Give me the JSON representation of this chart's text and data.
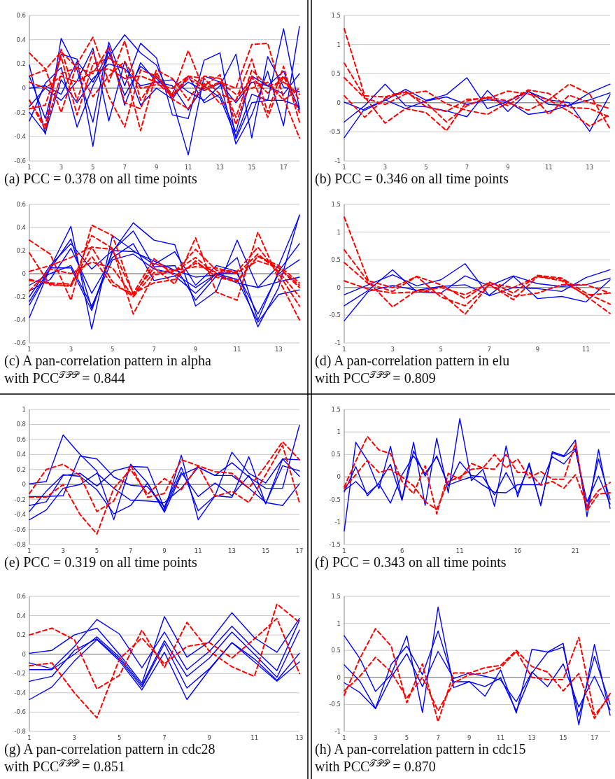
{
  "chart_data": [
    {
      "type": "line",
      "title": "(a) PCC = 0.378 on all time points",
      "x": [
        1,
        2,
        3,
        4,
        5,
        6,
        7,
        8,
        9,
        10,
        11,
        12,
        13,
        14,
        15,
        16,
        17,
        18
      ],
      "xlim": [
        1,
        18
      ],
      "xticks": [
        1,
        3,
        5,
        7,
        9,
        11,
        13,
        15,
        17
      ],
      "ylim": [
        -0.6,
        0.6
      ],
      "yticks": [
        -0.6,
        -0.4,
        -0.2,
        0,
        0.2,
        0.4,
        0.6
      ],
      "grid": "y",
      "series": [
        {
          "color": "#0000ff",
          "line_style": "solid",
          "values": [
            0.19,
            -0.38,
            0.41,
            0.15,
            -0.28,
            0.38,
            0.02,
            0.37,
            0.25,
            -0.22,
            -0.25,
            0.23,
            0.29,
            -0.42,
            -0.12,
            -0.1,
            0.49,
            -0.17
          ]
        },
        {
          "color": "#0000ff",
          "line_style": "solid",
          "values": [
            -0.27,
            0.04,
            0.17,
            -0.32,
            0.02,
            0.26,
            0.44,
            0.29,
            0.19,
            -0.1,
            -0.55,
            0.1,
            0.05,
            -0.46,
            -0.22,
            0.14,
            -0.31,
            0.51
          ]
        },
        {
          "color": "#0000ff",
          "line_style": "solid",
          "values": [
            0.1,
            -0.25,
            0.28,
            0.24,
            -0.48,
            0.35,
            -0.14,
            0.21,
            0.05,
            0.07,
            -0.03,
            -0.1,
            0.02,
            0.28,
            -0.41,
            0.26,
            0.01,
            -0.03
          ]
        },
        {
          "color": "#0000ff",
          "line_style": "solid",
          "values": [
            -0.15,
            0,
            -0.1,
            0.06,
            0.33,
            -0.27,
            0.22,
            -0.14,
            0,
            -0.09,
            0.1,
            -0.12,
            -0.05,
            -0.36,
            0.1,
            0.02,
            -0.05,
            0.12
          ]
        },
        {
          "color": "#0000ff",
          "line_style": "solid",
          "values": [
            -0.2,
            -0.37,
            0.07,
            -0.12,
            0.08,
            0.2,
            0.16,
            0.02,
            0.05,
            0.02,
            -0.18,
            0.02,
            -0.08,
            -0.4,
            -0.05,
            -0.1,
            -0.1,
            -0.15
          ]
        },
        {
          "color": "#0000ff",
          "line_style": "solid",
          "values": [
            0,
            0.02,
            -0.05,
            0.22,
            0.05,
            0.3,
            -0.06,
            0.18,
            0.08,
            -0.06,
            0.05,
            -0.02,
            0.04,
            -0.12,
            0.05,
            0.02,
            0.14,
            -0.18
          ]
        },
        {
          "color": "#ff0000",
          "line_style": "dashed",
          "values": [
            0.29,
            0.16,
            -0.2,
            0.2,
            0.42,
            0.05,
            0.39,
            -0.1,
            0.1,
            -0.05,
            0.31,
            -0.02,
            0.05,
            0,
            0.36,
            0.37,
            -0.08,
            -0.41
          ]
        },
        {
          "color": "#ff0000",
          "line_style": "dashed",
          "values": [
            -0.1,
            -0.31,
            0.32,
            -0.1,
            0.3,
            -0.07,
            -0.32,
            0.15,
            0.1,
            -0.06,
            0.1,
            0.08,
            -0.05,
            -0.1,
            0.24,
            -0.2,
            0.18,
            -0.28
          ]
        },
        {
          "color": "#ff0000",
          "line_style": "dashed",
          "values": [
            -0.17,
            -0.14,
            0.26,
            -0.22,
            0.2,
            0.25,
            0.16,
            -0.35,
            0.13,
            -0.09,
            -0.17,
            0.04,
            -0.13,
            -0.1,
            0.09,
            -0.04,
            0.1,
            -0.1
          ]
        },
        {
          "color": "#ff0000",
          "line_style": "dashed",
          "values": [
            0.1,
            0.15,
            0.3,
            0.17,
            0.12,
            0.34,
            -0.12,
            -0.17,
            0.15,
            0.08,
            -0.1,
            0.1,
            0.08,
            -0.24,
            0.15,
            0.02,
            0.05,
            -0.05
          ]
        },
        {
          "color": "#ff0000",
          "line_style": "dashed",
          "values": [
            -0.1,
            -0.34,
            0.12,
            0.17,
            -0.07,
            0.1,
            0.22,
            0,
            0.03,
            0,
            0.1,
            0.02,
            0.11,
            -0.3,
            0.1,
            -0.24,
            0.1,
            -0.2
          ]
        },
        {
          "color": "#ff0000",
          "line_style": "dashed",
          "values": [
            0.05,
            0,
            0.1,
            0.05,
            0.14,
            0.16,
            0.08,
            0.1,
            0.05,
            -0.07,
            0.08,
            0,
            0.05,
            -0.05,
            0,
            0.05,
            -0.1,
            0
          ]
        }
      ]
    },
    {
      "type": "line",
      "title": "(b) PCC = 0.346 on all time points",
      "x": [
        1,
        2,
        3,
        4,
        5,
        6,
        7,
        8,
        9,
        10,
        11,
        12,
        13,
        14
      ],
      "xlim": [
        1,
        14
      ],
      "xticks": [
        1,
        3,
        5,
        7,
        9,
        11,
        13
      ],
      "ylim": [
        -1,
        1.5
      ],
      "yticks": [
        -1,
        -0.5,
        0,
        0.5,
        1,
        1.5
      ],
      "grid": "y",
      "series": [
        {
          "color": "#0000ff",
          "line_style": "solid",
          "values": [
            -0.6,
            -0.1,
            0.04,
            0.23,
            0.04,
            0.14,
            0.43,
            -0.1,
            0.02,
            0.2,
            -0.03,
            -0.05,
            0.17,
            0.32
          ]
        },
        {
          "color": "#0000ff",
          "line_style": "solid",
          "values": [
            -0.33,
            -0.05,
            0.32,
            -0.05,
            -0.07,
            -0.14,
            -0.24,
            0.21,
            -0.15,
            0.19,
            0.05,
            0,
            -0.49,
            0.14
          ]
        },
        {
          "color": "#0000ff",
          "line_style": "solid",
          "values": [
            0.01,
            -0.13,
            0.05,
            -0.1,
            0.03,
            0.1,
            -0.03,
            0.05,
            0.02,
            -0.2,
            -0.15,
            -0.04,
            0.05,
            0.17
          ]
        },
        {
          "color": "#ff0000",
          "line_style": "dashed",
          "values": [
            1.27,
            0.12,
            0.1,
            0.2,
            -0.07,
            -0.15,
            0.06,
            0.07,
            0.2,
            0.15,
            0.05,
            0.32,
            0.15,
            -0.45
          ]
        },
        {
          "color": "#ff0000",
          "line_style": "dashed",
          "values": [
            0.68,
            0.1,
            -0.35,
            -0.1,
            -0.17,
            -0.48,
            0.03,
            0.1,
            0.03,
            0.22,
            0.16,
            -0.08,
            -0.1,
            -0.25
          ]
        },
        {
          "color": "#ff0000",
          "line_style": "dashed",
          "values": [
            0.43,
            0.08,
            -0.03,
            0.15,
            0.2,
            -0.02,
            -0.13,
            -0.2,
            0,
            -0.13,
            0.05,
            -0.15,
            -0.4,
            -0.2
          ]
        },
        {
          "color": "#ff0000",
          "line_style": "dashed",
          "values": [
            0.12,
            -0.25,
            0.08,
            0.18,
            0,
            -0.33,
            -0.05,
            0.09,
            -0.05,
            0.21,
            -0.2,
            0.13,
            0,
            -0.1
          ]
        }
      ]
    },
    {
      "type": "line",
      "title": "(c) A pan-correlation pattern in alpha with PCC$^{𝒯𝒫𝒫}$ = 0.844",
      "x": [
        1,
        2,
        3,
        4,
        5,
        6,
        7,
        8,
        9,
        10,
        11,
        12,
        13,
        14
      ],
      "xlim": [
        1,
        14
      ],
      "xticks": [
        1,
        3,
        5,
        7,
        9,
        11,
        13
      ],
      "ylim": [
        -0.6,
        0.6
      ],
      "yticks": [
        -0.6,
        -0.4,
        -0.2,
        0,
        0.2,
        0.4,
        0.6
      ],
      "grid": "y",
      "series": [
        {
          "color": "#0000ff",
          "line_style": "solid",
          "values": [
            -0.38,
            0.05,
            0.41,
            -0.48,
            0.33,
            0.2,
            0.08,
            0.19,
            -0.1,
            0.07,
            0.02,
            -0.46,
            -0.12,
            0.51
          ]
        },
        {
          "color": "#0000ff",
          "line_style": "solid",
          "values": [
            -0.27,
            0.04,
            0.3,
            -0.3,
            0.19,
            0.44,
            0.29,
            0.25,
            -0.28,
            -0.15,
            0.29,
            -0.12,
            0.07,
            0.5
          ]
        },
        {
          "color": "#0000ff",
          "line_style": "solid",
          "values": [
            -0.2,
            0.07,
            0.26,
            0.04,
            0.2,
            0.37,
            0.06,
            0.07,
            -0.23,
            -0.02,
            0.14,
            -0.4,
            0.02,
            0.26
          ]
        },
        {
          "color": "#0000ff",
          "line_style": "solid",
          "values": [
            -0.15,
            -0.05,
            0.22,
            -0.17,
            0.14,
            0.26,
            -0.06,
            -0.02,
            -0.17,
            0,
            0,
            -0.35,
            0,
            0.12
          ]
        },
        {
          "color": "#0000ff",
          "line_style": "solid",
          "values": [
            -0.1,
            0,
            0.07,
            -0.28,
            0.12,
            0.17,
            0.04,
            0,
            -0.12,
            0,
            -0.05,
            -0.42,
            -0.18,
            -0.14
          ]
        },
        {
          "color": "#0000ff",
          "line_style": "solid",
          "values": [
            -0.24,
            0.05,
            0.05,
            -0.32,
            0.2,
            0.19,
            0.11,
            0.03,
            -0.03,
            -0.01,
            -0.08,
            -0.12,
            -0.07,
            -0.03
          ]
        },
        {
          "color": "#ff0000",
          "line_style": "dashed",
          "values": [
            0.29,
            0.17,
            -0.23,
            0.42,
            0.33,
            -0.18,
            0.05,
            -0.09,
            0.31,
            -0.16,
            -0.23,
            0.36,
            -0.05,
            -0.4
          ]
        },
        {
          "color": "#ff0000",
          "line_style": "dashed",
          "values": [
            0.18,
            -0.1,
            -0.1,
            0.33,
            0.22,
            -0.35,
            -0.01,
            0.02,
            0.21,
            0.03,
            0.02,
            0.23,
            0,
            -0.28
          ]
        },
        {
          "color": "#ff0000",
          "line_style": "dashed",
          "values": [
            0.02,
            0.07,
            0.14,
            0.23,
            -0.07,
            -0.2,
            0.09,
            0.02,
            0.14,
            -0.01,
            -0.06,
            0.15,
            0.05,
            -0.1
          ]
        },
        {
          "color": "#ff0000",
          "line_style": "dashed",
          "values": [
            -0.05,
            -0.09,
            -0.11,
            0.23,
            0.21,
            -0.17,
            0.13,
            -0.02,
            0.09,
            0.01,
            0.01,
            0.11,
            0.05,
            -0.12
          ]
        },
        {
          "color": "#ff0000",
          "line_style": "dashed",
          "values": [
            -0.15,
            0.04,
            0,
            0.1,
            0.05,
            -0.2,
            0.01,
            0.03,
            0.06,
            0.05,
            0,
            0.17,
            0.02,
            -0.2
          ]
        },
        {
          "color": "#ff0000",
          "line_style": "dashed",
          "values": [
            -0.06,
            -0.08,
            -0.09,
            0.15,
            -0.1,
            -0.17,
            -0.08,
            -0.05,
            0.11,
            -0.03,
            -0.07,
            0.15,
            0.07,
            -0.08
          ]
        }
      ]
    },
    {
      "type": "line",
      "title": "(d) A pan-correlation pattern in elu with PCC$^{𝒯𝒫𝒫}$ = 0.809",
      "x": [
        1,
        2,
        3,
        4,
        5,
        6,
        7,
        8,
        9,
        10,
        11,
        12
      ],
      "xlim": [
        1,
        12
      ],
      "xticks": [
        1,
        3,
        5,
        7,
        9,
        11
      ],
      "ylim": [
        -1,
        1.5
      ],
      "yticks": [
        -1,
        -0.5,
        0,
        0.5,
        1,
        1.5
      ],
      "grid": "y",
      "series": [
        {
          "color": "#0000ff",
          "line_style": "solid",
          "values": [
            -0.6,
            -0.07,
            0.04,
            -0.05,
            0.02,
            0.05,
            -0.14,
            0.2,
            -0.2,
            -0.16,
            -0.26,
            0.14
          ]
        },
        {
          "color": "#0000ff",
          "line_style": "solid",
          "values": [
            -0.33,
            -0.05,
            0.32,
            -0.08,
            -0.1,
            0.21,
            0.03,
            0.21,
            0.07,
            0.02,
            0.05,
            0.17
          ]
        },
        {
          "color": "#0000ff",
          "line_style": "solid",
          "values": [
            -0.13,
            0.05,
            0.23,
            0.03,
            0.14,
            0.43,
            -0.15,
            0,
            -0.02,
            -0.07,
            0.18,
            0.32
          ]
        },
        {
          "color": "#ff0000",
          "line_style": "dashed",
          "values": [
            1.27,
            0.12,
            0,
            0.2,
            0.05,
            -0.2,
            0.1,
            -0.1,
            0.22,
            0.17,
            -0.1,
            -0.3
          ]
        },
        {
          "color": "#ff0000",
          "line_style": "dashed",
          "values": [
            0.68,
            0.1,
            -0.35,
            -0.05,
            -0.1,
            -0.48,
            0.05,
            -0.22,
            0.2,
            0.15,
            -0.15,
            -0.47
          ]
        },
        {
          "color": "#ff0000",
          "line_style": "dashed",
          "values": [
            0.45,
            0.07,
            -0.07,
            0.2,
            -0.17,
            -0.33,
            0.05,
            -0.16,
            -0.1,
            0.05,
            0.05,
            -0.1
          ]
        },
        {
          "color": "#ff0000",
          "line_style": "dashed",
          "values": [
            0.12,
            -0.03,
            -0.1,
            -0.08,
            0,
            -0.13,
            0.08,
            0,
            0.2,
            0.12,
            -0.14,
            -0.1
          ]
        }
      ]
    },
    {
      "type": "line",
      "title": "(e) PCC = 0.319 on all time points",
      "x": [
        1,
        2,
        3,
        4,
        5,
        6,
        7,
        8,
        9,
        10,
        11,
        12,
        13,
        14,
        15,
        16,
        17
      ],
      "xlim": [
        1,
        17
      ],
      "xticks": [
        1,
        3,
        5,
        7,
        9,
        11,
        13,
        15,
        17
      ],
      "ylim": [
        -0.8,
        1
      ],
      "yticks": [
        -0.8,
        -0.6,
        -0.4,
        -0.2,
        0,
        0.2,
        0.4,
        0.6,
        0.8,
        1
      ],
      "grid": "y",
      "series": [
        {
          "color": "#0000ff",
          "line_style": "solid",
          "values": [
            0.01,
            0.04,
            0.66,
            0.4,
            0.18,
            -0.47,
            0.27,
            0.02,
            -0.35,
            0.39,
            -0.47,
            -0.15,
            -0.17,
            0.37,
            -0.26,
            0.34,
            0.33
          ]
        },
        {
          "color": "#0000ff",
          "line_style": "solid",
          "values": [
            -0.16,
            -0.16,
            -0.15,
            0.38,
            0.34,
            0.1,
            -0.01,
            -0.03,
            -0.3,
            0.23,
            -0.35,
            -0.15,
            0.43,
            0.15,
            0.02,
            0.34,
            0.11
          ]
        },
        {
          "color": "#0000ff",
          "line_style": "solid",
          "values": [
            -0.36,
            -0.09,
            0.13,
            0.11,
            -0.07,
            -0.39,
            -0.28,
            0.02,
            -0.37,
            0.13,
            0.23,
            0.12,
            0.29,
            0.1,
            -0.05,
            -0.05,
            0.79
          ]
        },
        {
          "color": "#0000ff",
          "line_style": "solid",
          "values": [
            -0.28,
            -0.23,
            0.12,
            0.15,
            -0.02,
            0.18,
            0.24,
            0.23,
            -0.32,
            0.16,
            -0.16,
            0.02,
            -0.15,
            0.12,
            -0.25,
            0.25,
            0.18
          ]
        },
        {
          "color": "#0000ff",
          "line_style": "solid",
          "values": [
            -0.47,
            -0.34,
            -0.05,
            0,
            0.15,
            -0.05,
            -0.21,
            -0.22,
            -0.24,
            -0.05,
            0.23,
            0.12,
            0.12,
            -0.05,
            -0.24,
            -0.28,
            0.01
          ]
        },
        {
          "color": "#ff0000",
          "line_style": "dashed",
          "values": [
            -0.12,
            0.2,
            0.27,
            0.12,
            -0.36,
            -0.22,
            0.26,
            -0.17,
            -0.12,
            0.33,
            0.25,
            0.17,
            0.15,
            -0.05,
            0.25,
            0.57,
            0.33
          ]
        },
        {
          "color": "#ff0000",
          "line_style": "dashed",
          "values": [
            -0.17,
            -0.17,
            0,
            -0.4,
            -0.66,
            -0.05,
            0.2,
            -0.13,
            0.08,
            -0.07,
            0.25,
            -0.16,
            -0.09,
            -0.24,
            0.13,
            0.52,
            -0.24
          ]
        }
      ]
    },
    {
      "type": "line",
      "title": "(f) PCC = 0.343 on all time points",
      "x": [
        1,
        2,
        3,
        4,
        5,
        6,
        7,
        8,
        9,
        10,
        11,
        12,
        13,
        14,
        15,
        16,
        17,
        18,
        19,
        20,
        21,
        22,
        23,
        24
      ],
      "xlim": [
        1,
        24
      ],
      "xticks": [
        1,
        6,
        11,
        16,
        21
      ],
      "ylim": [
        -1.5,
        1.5
      ],
      "yticks": [
        -1.5,
        -1,
        -0.5,
        0,
        0.5,
        1,
        1.5
      ],
      "grid": "y",
      "series": [
        {
          "color": "#0000ff",
          "line_style": "solid",
          "values": [
            -1.2,
            0.77,
            0.37,
            -0.26,
            0.68,
            -0.5,
            0.77,
            -0.63,
            0.86,
            -0.35,
            1.3,
            -0.08,
            0.17,
            -0.65,
            0.69,
            -0.44,
            0.31,
            -0.64,
            0.56,
            0.47,
            0.82,
            -0.88,
            0.61,
            -0.7
          ]
        },
        {
          "color": "#0000ff",
          "line_style": "solid",
          "values": [
            -0.33,
            0.23,
            -0.42,
            -0.13,
            0.28,
            -0.52,
            0.58,
            0.02,
            0.47,
            -0.2,
            0.34,
            0.03,
            0,
            -0.4,
            0.1,
            -0.36,
            0.26,
            -0.62,
            0.53,
            0.45,
            0.63,
            -0.7,
            0.4,
            -0.5
          ]
        },
        {
          "color": "#0000ff",
          "line_style": "solid",
          "values": [
            -0.3,
            -0.1,
            -0.37,
            -0.15,
            -0.58,
            0.05,
            0.47,
            0.07,
            0.45,
            -0.18,
            -0.08,
            0,
            -0.18,
            -0.34,
            -0.35,
            -0.17,
            -0.17,
            -0.17,
            0.45,
            0.29,
            0.6,
            -0.55,
            0.02,
            -0.6
          ]
        },
        {
          "color": "#ff0000",
          "line_style": "dashed",
          "values": [
            -0.22,
            0.35,
            0.9,
            0.6,
            0.52,
            -0.1,
            -0.37,
            0.25,
            -0.82,
            0.08,
            -0.05,
            0.3,
            0.2,
            0.5,
            0.2,
            0.4,
            -0.02,
            0.12,
            -0.05,
            -0.05,
            0.75,
            -0.75,
            -0.38,
            -0.35
          ]
        },
        {
          "color": "#ff0000",
          "line_style": "dashed",
          "values": [
            -0.25,
            0.05,
            0.37,
            0.1,
            0.17,
            0,
            -0.2,
            -0.55,
            -0.72,
            -0.1,
            0,
            0.17,
            0.2,
            0.17,
            0.5,
            0.1,
            0.1,
            -0.18,
            -0.1,
            -0.25,
            0.05,
            -0.65,
            -0.3,
            -0.12
          ]
        }
      ]
    },
    {
      "type": "line",
      "title": "(g) A pan-correlation pattern in cdc28 with PCC$^{𝒯𝒫𝒫}$ = 0.851",
      "x": [
        1,
        2,
        3,
        4,
        5,
        6,
        7,
        8,
        9,
        10,
        11,
        12,
        13
      ],
      "xlim": [
        1,
        13
      ],
      "xticks": [
        1,
        3,
        5,
        7,
        9,
        11,
        13
      ],
      "ylim": [
        -0.8,
        0.6
      ],
      "yticks": [
        -0.8,
        -0.6,
        -0.4,
        -0.2,
        0,
        0.2,
        0.4,
        0.6
      ],
      "grid": "y",
      "series": [
        {
          "color": "#0000ff",
          "line_style": "solid",
          "values": [
            0.01,
            0.04,
            0.2,
            0.27,
            0,
            -0.3,
            0.39,
            -0.03,
            0.13,
            0.43,
            0.17,
            0.02,
            0.37
          ]
        },
        {
          "color": "#0000ff",
          "line_style": "solid",
          "values": [
            -0.09,
            -0.15,
            0.08,
            0.36,
            0.21,
            -0.14,
            0.23,
            -0.16,
            0.03,
            0.29,
            0.05,
            -0.17,
            0.35
          ]
        },
        {
          "color": "#0000ff",
          "line_style": "solid",
          "values": [
            -0.16,
            -0.16,
            0,
            0.18,
            -0.03,
            -0.32,
            0.14,
            -0.23,
            -0.04,
            0.23,
            0,
            -0.24,
            0.25
          ]
        },
        {
          "color": "#0000ff",
          "line_style": "solid",
          "values": [
            -0.28,
            -0.23,
            0.04,
            0.16,
            -0.05,
            -0.34,
            0.11,
            -0.35,
            -0.15,
            0.12,
            -0.05,
            -0.27,
            0.01
          ]
        },
        {
          "color": "#0000ff",
          "line_style": "solid",
          "values": [
            -0.47,
            -0.34,
            -0.07,
            0.15,
            -0.07,
            -0.37,
            0.02,
            -0.47,
            -0.16,
            0.12,
            -0.08,
            -0.28,
            -0.08
          ]
        },
        {
          "color": "#ff0000",
          "line_style": "dashed",
          "values": [
            0.2,
            0.27,
            0.15,
            -0.36,
            -0.22,
            0.25,
            -0.14,
            0.33,
            0.03,
            -0.13,
            -0.23,
            0.52,
            0.33
          ]
        },
        {
          "color": "#ff0000",
          "line_style": "dashed",
          "values": [
            -0.12,
            -0.09,
            -0.4,
            -0.66,
            -0.05,
            0.17,
            -0.1,
            0.08,
            0.12,
            -0.04,
            0.16,
            0.37,
            -0.2
          ]
        }
      ]
    },
    {
      "type": "line",
      "title": "(h) A pan-correlation pattern in cdc15 with PCC$^{𝒯𝒫𝒫}$ = 0.870",
      "x": [
        1,
        2,
        3,
        4,
        5,
        6,
        7,
        8,
        9,
        10,
        11,
        12,
        13,
        14,
        15,
        16,
        17,
        18
      ],
      "xlim": [
        1,
        18
      ],
      "xticks": [
        1,
        3,
        5,
        7,
        9,
        11,
        13,
        15,
        17
      ],
      "ylim": [
        -1,
        1.5
      ],
      "yticks": [
        -1,
        -0.5,
        0,
        0.5,
        1,
        1.5
      ],
      "grid": "y",
      "series": [
        {
          "color": "#0000ff",
          "line_style": "solid",
          "values": [
            0.77,
            0.35,
            -0.26,
            0.05,
            0.77,
            -0.65,
            1.3,
            -0.19,
            -0.08,
            -0.35,
            0.14,
            -0.66,
            0.52,
            0.47,
            0.63,
            -0.88,
            0.61,
            -0.7
          ]
        },
        {
          "color": "#0000ff",
          "line_style": "solid",
          "values": [
            0.23,
            -0.07,
            -0.57,
            0.24,
            0.58,
            0.05,
            0.86,
            -0.08,
            -0.08,
            -0.17,
            -0.01,
            -0.62,
            0.08,
            0.46,
            0.56,
            -0.72,
            0.39,
            -0.5
          ]
        },
        {
          "color": "#0000ff",
          "line_style": "solid",
          "values": [
            -0.1,
            -0.28,
            -0.58,
            0,
            0.44,
            -0.17,
            0.48,
            -0.02,
            0.08,
            0.02,
            -0.05,
            -0.45,
            0.1,
            -0.17,
            0.25,
            -0.55,
            0.02,
            -0.6
          ]
        },
        {
          "color": "#ff0000",
          "line_style": "dashed",
          "values": [
            -0.33,
            0.35,
            0.9,
            0.58,
            -0.47,
            0.25,
            -0.82,
            0.08,
            0.08,
            0.18,
            0.22,
            0.5,
            0.2,
            0.1,
            -0.25,
            0.07,
            -0.76,
            -0.3
          ]
        },
        {
          "color": "#ff0000",
          "line_style": "dashed",
          "values": [
            -0.25,
            0.02,
            0.37,
            0.1,
            -0.38,
            0,
            -0.62,
            -0.1,
            0.05,
            0.08,
            0.18,
            0.48,
            0,
            -0.04,
            -0.04,
            0.74,
            -0.7,
            -0.35
          ]
        }
      ]
    }
  ]
}
